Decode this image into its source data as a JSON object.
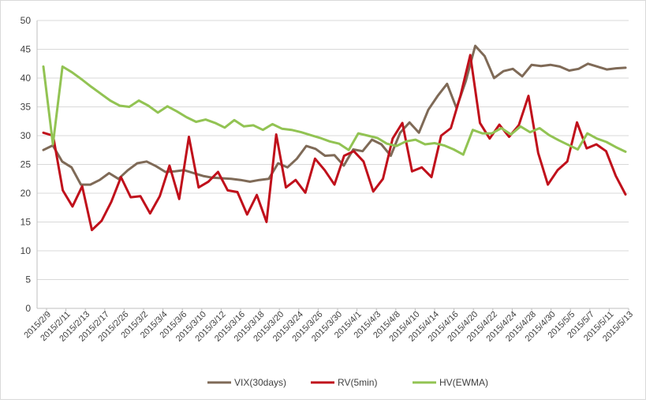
{
  "chart_data": {
    "type": "line",
    "title": "",
    "xlabel": "",
    "ylabel": "",
    "ylim": [
      0,
      50
    ],
    "y_ticks": [
      0,
      5,
      10,
      15,
      20,
      25,
      30,
      35,
      40,
      45,
      50
    ],
    "grid": "horizontal",
    "legend_position": "bottom",
    "x_tick_labels": [
      "2015/2/9",
      "2015/2/11",
      "2015/2/13",
      "2015/2/17",
      "2015/2/26",
      "2015/3/2",
      "2015/3/4",
      "2015/3/6",
      "2015/3/10",
      "2015/3/12",
      "2015/3/16",
      "2015/3/18",
      "2015/3/20",
      "2015/3/24",
      "2015/3/26",
      "2015/3/30",
      "2015/4/1",
      "2015/4/3",
      "2015/4/8",
      "2015/4/10",
      "2015/4/14",
      "2015/4/16",
      "2015/4/20",
      "2015/4/22",
      "2015/4/24",
      "2015/4/28",
      "2015/4/30",
      "2015/5/5",
      "2015/5/7",
      "2015/5/11",
      "2015/5/13"
    ],
    "series": [
      {
        "name": "VIX(30days)",
        "color": "#7f6a57",
        "values": [
          27.5,
          28.3,
          25.5,
          24.5,
          21.5,
          21.5,
          22.3,
          23.5,
          22.5,
          24.0,
          25.2,
          25.5,
          24.7,
          23.7,
          23.8,
          24.0,
          23.5,
          23.0,
          22.7,
          22.6,
          22.5,
          22.3,
          22.0,
          22.3,
          22.5,
          25.2,
          24.5,
          26.0,
          28.2,
          27.7,
          26.5,
          26.6,
          24.8,
          27.6,
          27.3,
          29.3,
          28.5,
          26.5,
          30.5,
          32.3,
          30.5,
          34.5,
          36.9,
          39.0,
          34.8,
          39.5,
          45.6,
          43.8,
          40.0,
          41.2,
          41.6,
          40.3,
          42.3,
          42.1,
          42.3,
          42.0,
          41.3,
          41.6,
          42.5,
          42.0,
          41.5,
          41.7,
          41.8
        ]
      },
      {
        "name": "RV(5min)",
        "color": "#c0101b",
        "values": [
          30.5,
          30.0,
          20.5,
          17.7,
          21.2,
          13.6,
          15.2,
          18.5,
          22.8,
          19.3,
          19.5,
          16.5,
          19.5,
          24.8,
          19.0,
          29.8,
          21.0,
          22.0,
          23.7,
          20.5,
          20.2,
          16.3,
          19.7,
          15.0,
          30.2,
          21.0,
          22.3,
          20.1,
          26.0,
          24.0,
          21.5,
          26.5,
          27.3,
          25.5,
          20.3,
          22.5,
          29.5,
          32.2,
          23.8,
          24.5,
          22.8,
          30.0,
          31.3,
          37.0,
          44.0,
          32.2,
          29.5,
          31.9,
          29.8,
          31.8,
          36.9,
          27.0,
          21.5,
          24.0,
          25.5,
          32.3,
          27.8,
          28.5,
          27.3,
          23.0,
          19.8
        ]
      },
      {
        "name": "HV(EWMA)",
        "color": "#92c353",
        "values": [
          42.0,
          28.5,
          42.0,
          41.0,
          39.8,
          38.5,
          37.3,
          36.1,
          35.2,
          35.0,
          36.1,
          35.2,
          34.0,
          35.1,
          34.2,
          33.2,
          32.4,
          32.8,
          32.2,
          31.4,
          32.7,
          31.6,
          31.8,
          31.0,
          32.0,
          31.2,
          31.0,
          30.6,
          30.1,
          29.6,
          29.0,
          28.6,
          27.5,
          30.4,
          30.0,
          29.6,
          28.6,
          28.2,
          29.0,
          29.3,
          28.5,
          28.7,
          28.3,
          27.6,
          26.7,
          31.0,
          30.4,
          30.4,
          31.3,
          30.2,
          31.6,
          30.6,
          31.3,
          30.1,
          29.2,
          28.4,
          27.6,
          30.4,
          29.5,
          28.9,
          28.0,
          27.2
        ]
      }
    ]
  }
}
